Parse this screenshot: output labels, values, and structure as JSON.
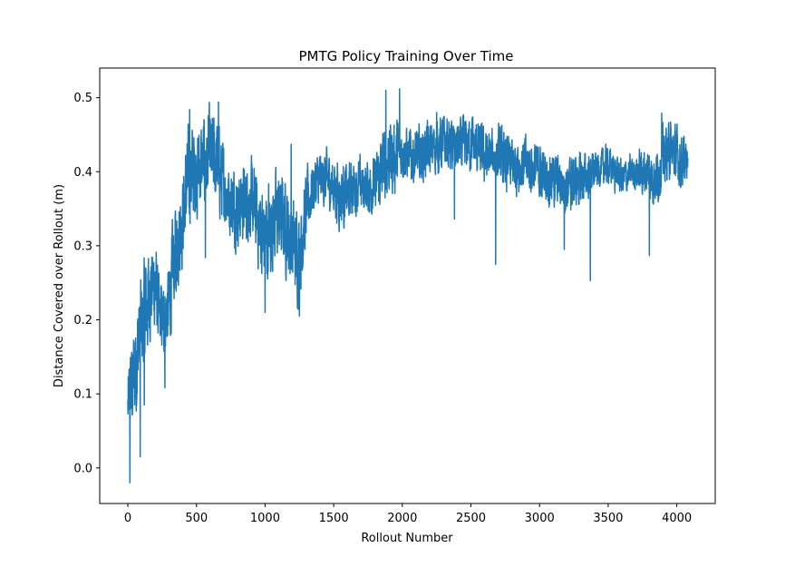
{
  "chart_data": {
    "type": "line",
    "title": "PMTG Policy Training Over Time",
    "xlabel": "Rollout Number",
    "ylabel": "Distance Covered over Rollout (m)",
    "xlim": [
      -205,
      4280
    ],
    "ylim": [
      -0.048,
      0.54
    ],
    "xticks": [
      0,
      500,
      1000,
      1500,
      2000,
      2500,
      3000,
      3500,
      4000
    ],
    "yticks": [
      0.0,
      0.1,
      0.2,
      0.3,
      0.4,
      0.5
    ],
    "xtick_labels": [
      "0",
      "500",
      "1000",
      "1500",
      "2000",
      "2500",
      "3000",
      "3500",
      "4000"
    ],
    "ytick_labels": [
      "0.0",
      "0.1",
      "0.2",
      "0.3",
      "0.4",
      "0.5"
    ],
    "grid": false,
    "legend": "none",
    "series": [
      {
        "color": "#1f77b4",
        "trend": {
          "x": [
            0,
            20,
            50,
            80,
            100,
            130,
            160,
            200,
            230,
            260,
            300,
            330,
            360,
            400,
            430,
            470,
            500,
            550,
            600,
            650,
            700,
            750,
            800,
            850,
            900,
            950,
            1000,
            1050,
            1100,
            1150,
            1200,
            1250,
            1300,
            1350,
            1400,
            1450,
            1500,
            1550,
            1600,
            1650,
            1700,
            1750,
            1800,
            1850,
            1900,
            1950,
            2000,
            2050,
            2100,
            2200,
            2300,
            2400,
            2500,
            2600,
            2700,
            2800,
            2900,
            3000,
            3100,
            3200,
            3300,
            3400,
            3500,
            3600,
            3700,
            3800,
            3850,
            3900,
            3950,
            4000,
            4050,
            4080
          ],
          "y": [
            0.08,
            0.1,
            0.13,
            0.17,
            0.19,
            0.21,
            0.24,
            0.25,
            0.2,
            0.2,
            0.22,
            0.27,
            0.31,
            0.34,
            0.38,
            0.4,
            0.4,
            0.41,
            0.42,
            0.41,
            0.38,
            0.36,
            0.35,
            0.36,
            0.36,
            0.33,
            0.31,
            0.33,
            0.34,
            0.33,
            0.3,
            0.29,
            0.35,
            0.38,
            0.39,
            0.39,
            0.38,
            0.37,
            0.37,
            0.38,
            0.38,
            0.38,
            0.38,
            0.4,
            0.42,
            0.42,
            0.43,
            0.42,
            0.42,
            0.43,
            0.44,
            0.43,
            0.44,
            0.42,
            0.42,
            0.41,
            0.41,
            0.4,
            0.39,
            0.38,
            0.39,
            0.4,
            0.41,
            0.39,
            0.4,
            0.4,
            0.39,
            0.42,
            0.43,
            0.42,
            0.41,
            0.41
          ],
          "spread": [
            0.04,
            0.05,
            0.06,
            0.06,
            0.06,
            0.06,
            0.05,
            0.05,
            0.04,
            0.04,
            0.05,
            0.05,
            0.05,
            0.05,
            0.05,
            0.05,
            0.05,
            0.05,
            0.05,
            0.05,
            0.04,
            0.04,
            0.04,
            0.04,
            0.04,
            0.05,
            0.06,
            0.05,
            0.05,
            0.05,
            0.05,
            0.05,
            0.04,
            0.03,
            0.03,
            0.03,
            0.03,
            0.04,
            0.03,
            0.03,
            0.03,
            0.03,
            0.03,
            0.04,
            0.04,
            0.04,
            0.03,
            0.03,
            0.03,
            0.03,
            0.03,
            0.03,
            0.03,
            0.03,
            0.03,
            0.03,
            0.03,
            0.03,
            0.03,
            0.03,
            0.03,
            0.02,
            0.02,
            0.02,
            0.02,
            0.03,
            0.03,
            0.03,
            0.03,
            0.03,
            0.03,
            0.02
          ]
        },
        "extremes": [
          {
            "x": 15,
            "y": -0.02
          },
          {
            "x": 90,
            "y": 0.015
          },
          {
            "x": 120,
            "y": 0.085
          },
          {
            "x": 270,
            "y": 0.108
          },
          {
            "x": 450,
            "y": 0.484
          },
          {
            "x": 565,
            "y": 0.284
          },
          {
            "x": 660,
            "y": 0.494
          },
          {
            "x": 1000,
            "y": 0.21
          },
          {
            "x": 1250,
            "y": 0.205
          },
          {
            "x": 1190,
            "y": 0.437
          },
          {
            "x": 1880,
            "y": 0.51
          },
          {
            "x": 1980,
            "y": 0.512
          },
          {
            "x": 2250,
            "y": 0.48
          },
          {
            "x": 2380,
            "y": 0.336
          },
          {
            "x": 2680,
            "y": 0.275
          },
          {
            "x": 2760,
            "y": 0.373
          },
          {
            "x": 3180,
            "y": 0.295
          },
          {
            "x": 3370,
            "y": 0.253
          },
          {
            "x": 3800,
            "y": 0.287
          },
          {
            "x": 3890,
            "y": 0.479
          }
        ]
      }
    ]
  }
}
